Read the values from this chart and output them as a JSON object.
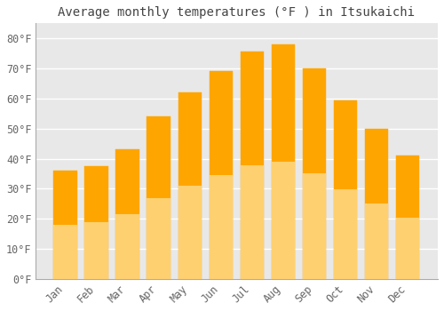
{
  "title": "Average monthly temperatures (°F ) in Itsukaichi",
  "months": [
    "Jan",
    "Feb",
    "Mar",
    "Apr",
    "May",
    "Jun",
    "Jul",
    "Aug",
    "Sep",
    "Oct",
    "Nov",
    "Dec"
  ],
  "values": [
    36,
    37.5,
    43,
    54,
    62,
    69,
    75.5,
    78,
    70,
    59.5,
    50,
    41
  ],
  "bar_color_top": "#FFA500",
  "bar_color_bottom": "#FFD070",
  "bar_edge_color": "#FFA000",
  "figure_bg": "#FFFFFF",
  "plot_bg": "#E8E8E8",
  "grid_color": "#FFFFFF",
  "title_color": "#444444",
  "tick_color": "#666666",
  "ylim": [
    0,
    85
  ],
  "yticks": [
    0,
    10,
    20,
    30,
    40,
    50,
    60,
    70,
    80
  ],
  "title_fontsize": 10,
  "tick_fontsize": 8.5,
  "bar_width": 0.75
}
